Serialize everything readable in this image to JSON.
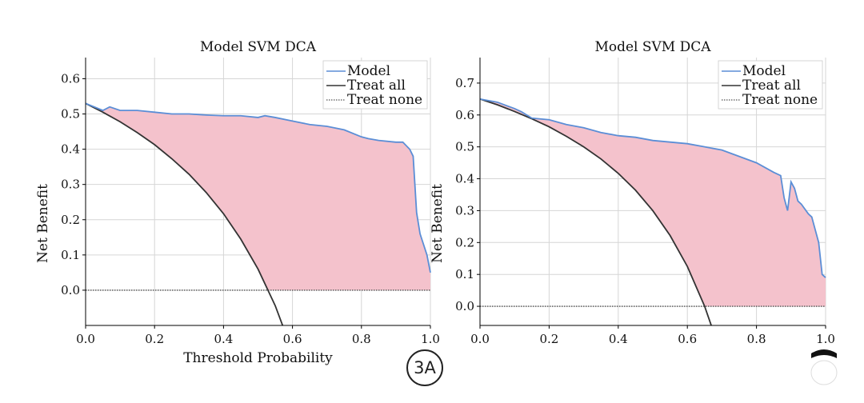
{
  "badge": {
    "label": "3A"
  },
  "chart_data": [
    {
      "type": "line",
      "title": "Model SVM DCA",
      "xlabel": "Threshold Probability",
      "ylabel": "Net Benefit",
      "xlim": [
        0.0,
        1.0
      ],
      "ylim": [
        -0.1,
        0.66
      ],
      "xticks": [
        "0.0",
        "0.2",
        "0.4",
        "0.6",
        "0.8",
        "1.0"
      ],
      "yticks": [
        "0.0",
        "0.1",
        "0.2",
        "0.3",
        "0.4",
        "0.5",
        "0.6"
      ],
      "grid": true,
      "legend_position": "top-right",
      "fill_between_model_and_treat_all": true,
      "colors": {
        "model": "#5b8ed6",
        "treat_all": "#333333",
        "treat_none": "#555555",
        "fill": "#f4c2cc"
      },
      "series": [
        {
          "name": "Model",
          "x": [
            0.0,
            0.05,
            0.07,
            0.1,
            0.15,
            0.2,
            0.25,
            0.3,
            0.35,
            0.4,
            0.45,
            0.5,
            0.52,
            0.55,
            0.6,
            0.65,
            0.7,
            0.75,
            0.8,
            0.82,
            0.85,
            0.9,
            0.92,
            0.94,
            0.95,
            0.955,
            0.96,
            0.97,
            0.99,
            1.0
          ],
          "y": [
            0.53,
            0.51,
            0.52,
            0.51,
            0.51,
            0.505,
            0.5,
            0.5,
            0.497,
            0.495,
            0.495,
            0.49,
            0.495,
            0.49,
            0.48,
            0.47,
            0.465,
            0.455,
            0.435,
            0.43,
            0.425,
            0.42,
            0.42,
            0.4,
            0.38,
            0.3,
            0.22,
            0.16,
            0.1,
            0.05
          ]
        },
        {
          "name": "Treat all",
          "x": [
            0.0,
            0.05,
            0.1,
            0.15,
            0.2,
            0.25,
            0.3,
            0.35,
            0.4,
            0.45,
            0.5,
            0.55,
            0.6
          ],
          "y": [
            0.53,
            0.505,
            0.478,
            0.447,
            0.413,
            0.373,
            0.329,
            0.277,
            0.217,
            0.145,
            0.06,
            -0.044,
            -0.175
          ]
        },
        {
          "name": "Treat none",
          "x": [
            0.0,
            1.0
          ],
          "y": [
            0.0,
            0.0
          ]
        }
      ]
    },
    {
      "type": "line",
      "title": "Model SVM DCA",
      "xlabel": "",
      "ylabel": "Net Benefit",
      "xlim": [
        0.0,
        1.0
      ],
      "ylim": [
        -0.06,
        0.78
      ],
      "xticks": [
        "0.0",
        "0.2",
        "0.4",
        "0.6",
        "0.8",
        "1.0"
      ],
      "yticks": [
        "0.0",
        "0.1",
        "0.2",
        "0.3",
        "0.4",
        "0.5",
        "0.6",
        "0.7"
      ],
      "grid": true,
      "legend_position": "top-right",
      "fill_between_model_and_treat_all": true,
      "colors": {
        "model": "#5b8ed6",
        "treat_all": "#333333",
        "treat_none": "#555555",
        "fill": "#f4c2cc"
      },
      "series": [
        {
          "name": "Model",
          "x": [
            0.0,
            0.05,
            0.1,
            0.12,
            0.15,
            0.2,
            0.25,
            0.3,
            0.35,
            0.4,
            0.45,
            0.5,
            0.55,
            0.6,
            0.65,
            0.7,
            0.75,
            0.8,
            0.85,
            0.87,
            0.88,
            0.89,
            0.9,
            0.91,
            0.92,
            0.93,
            0.95,
            0.96,
            0.98,
            0.99,
            1.0
          ],
          "y": [
            0.65,
            0.64,
            0.62,
            0.61,
            0.59,
            0.585,
            0.57,
            0.56,
            0.545,
            0.535,
            0.53,
            0.52,
            0.515,
            0.51,
            0.5,
            0.49,
            0.47,
            0.45,
            0.42,
            0.41,
            0.34,
            0.3,
            0.39,
            0.37,
            0.33,
            0.32,
            0.29,
            0.28,
            0.2,
            0.1,
            0.09
          ]
        },
        {
          "name": "Treat all",
          "x": [
            0.0,
            0.05,
            0.1,
            0.15,
            0.2,
            0.25,
            0.3,
            0.35,
            0.4,
            0.45,
            0.5,
            0.55,
            0.6,
            0.65,
            0.68
          ],
          "y": [
            0.65,
            0.632,
            0.611,
            0.588,
            0.563,
            0.533,
            0.5,
            0.462,
            0.417,
            0.364,
            0.3,
            0.222,
            0.125,
            0.0,
            -0.094
          ]
        },
        {
          "name": "Treat none",
          "x": [
            0.0,
            1.0
          ],
          "y": [
            0.0,
            0.0
          ]
        }
      ]
    }
  ]
}
